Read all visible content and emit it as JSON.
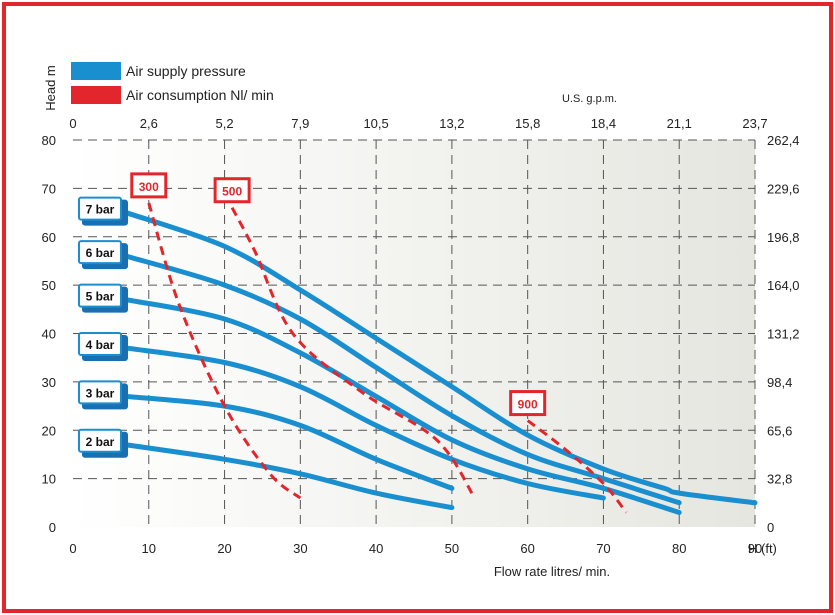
{
  "chart_data": {
    "type": "line",
    "title": "",
    "xlabel": "Flow rate litres/ min.",
    "ylabel": "Head m",
    "x2label": "U.S. g.p.m.",
    "y2label": "H (ft)",
    "xlim": [
      0,
      90
    ],
    "ylim": [
      0,
      80
    ],
    "x_ticks": [
      "0",
      "10",
      "20",
      "30",
      "40",
      "50",
      "60",
      "70",
      "80",
      "90"
    ],
    "y_ticks": [
      "0",
      "10",
      "20",
      "30",
      "40",
      "50",
      "60",
      "70",
      "80"
    ],
    "x2_ticks": [
      "0",
      "2,6",
      "5,2",
      "7,9",
      "10,5",
      "13,2",
      "15,8",
      "18,4",
      "21,1",
      "23,7"
    ],
    "y2_ticks": [
      "0",
      "32,8",
      "65,6",
      "98,4",
      "131,2",
      "164,0",
      "196,8",
      "229,6",
      "262,4"
    ],
    "grid": true,
    "legend_position": "top-left",
    "legend": [
      {
        "label": "Air supply pressure",
        "color": "#1a8fd0"
      },
      {
        "label": "Air consumption Nl/ min",
        "color": "#e3262b"
      }
    ],
    "pressure_series": [
      {
        "name": "7 bar",
        "color": "#1a8fd0",
        "x": [
          7,
          20,
          30,
          40,
          50,
          60,
          70,
          78,
          80,
          90
        ],
        "y": [
          65,
          58,
          49,
          39,
          29,
          19,
          12,
          8,
          7,
          5
        ]
      },
      {
        "name": "6 bar",
        "color": "#1a8fd0",
        "x": [
          7,
          20,
          30,
          40,
          50,
          60,
          70,
          80
        ],
        "y": [
          56,
          50,
          43,
          33,
          23,
          15,
          10,
          5
        ]
      },
      {
        "name": "5 bar",
        "color": "#1a8fd0",
        "x": [
          7,
          20,
          30,
          40,
          50,
          60,
          70,
          80
        ],
        "y": [
          47,
          43,
          36,
          27,
          18,
          12,
          8,
          3
        ]
      },
      {
        "name": "4 bar",
        "color": "#1a8fd0",
        "x": [
          7,
          20,
          30,
          40,
          50,
          60,
          70
        ],
        "y": [
          37,
          34,
          29,
          21,
          14,
          9,
          6
        ]
      },
      {
        "name": "3 bar",
        "color": "#1a8fd0",
        "x": [
          7,
          20,
          30,
          40,
          50
        ],
        "y": [
          27,
          25,
          21,
          14,
          8
        ]
      },
      {
        "name": "2 bar",
        "color": "#1a8fd0",
        "x": [
          7,
          20,
          30,
          40,
          50
        ],
        "y": [
          17,
          14,
          11,
          7,
          4
        ]
      }
    ],
    "consumption_series": [
      {
        "name": "300",
        "color": "#e3262b",
        "x": [
          10,
          14,
          20,
          26,
          30
        ],
        "y": [
          67,
          46,
          25,
          11,
          6
        ]
      },
      {
        "name": "500",
        "color": "#e3262b",
        "x": [
          21,
          24,
          29,
          38,
          48,
          53
        ],
        "y": [
          66,
          57,
          40,
          28,
          18,
          6
        ]
      },
      {
        "name": "900",
        "color": "#e3262b",
        "x": [
          60,
          65,
          70,
          73
        ],
        "y": [
          22,
          16,
          9,
          3
        ]
      }
    ]
  }
}
